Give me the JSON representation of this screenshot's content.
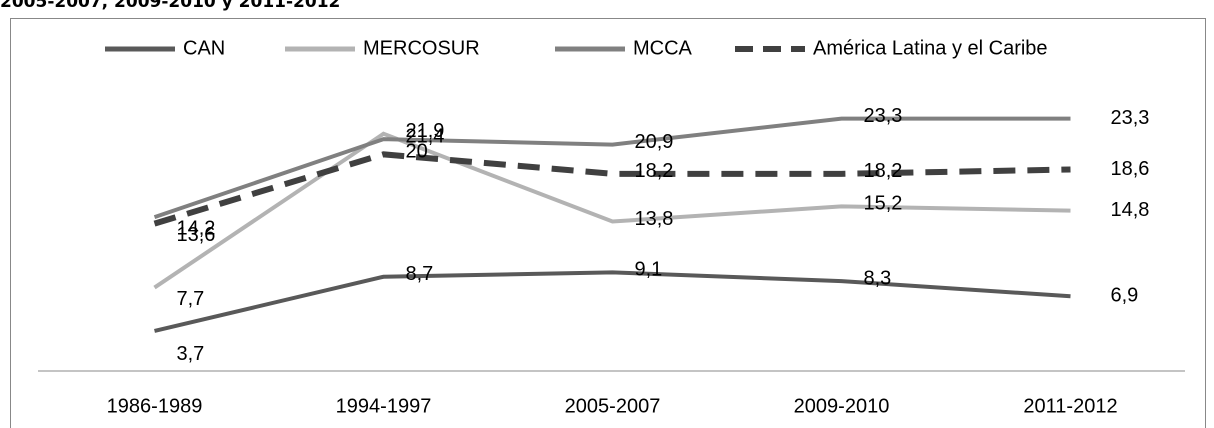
{
  "chart_data": {
    "type": "line",
    "title": "2005-2007, 2009-2010 y 2011-2012",
    "categories": [
      "1986-1989",
      "1994-1997",
      "2005-2007",
      "2009-2010",
      "2011-2012"
    ],
    "series": [
      {
        "name": "CAN",
        "color": "#595959",
        "dashed": false,
        "values": [
          3.7,
          8.7,
          9.1,
          8.3,
          6.9
        ],
        "value_labels": [
          "3,7",
          "8,7",
          "9,1",
          "8,3",
          "6,9"
        ]
      },
      {
        "name": "MERCOSUR",
        "color": "#b3b3b3",
        "dashed": false,
        "values": [
          7.7,
          21.9,
          13.8,
          15.2,
          14.8
        ],
        "value_labels": [
          "7,7",
          "21,9",
          "13,8",
          "15,2",
          "14,8"
        ]
      },
      {
        "name": "MCCA",
        "color": "#808080",
        "dashed": false,
        "values": [
          14.2,
          21.4,
          20.9,
          23.3,
          23.3
        ],
        "value_labels": [
          "14,2",
          "21,4",
          "20,9",
          "23,3",
          "23,3"
        ]
      },
      {
        "name": "América Latina y el Caribe",
        "color": "#404040",
        "dashed": true,
        "values": [
          13.6,
          20,
          18.2,
          18.2,
          18.6
        ],
        "value_labels": [
          "13,6",
          "20",
          "18,2",
          "18,2",
          "18,6"
        ]
      }
    ],
    "ylim": [
      0,
      30
    ],
    "legend": "top"
  }
}
